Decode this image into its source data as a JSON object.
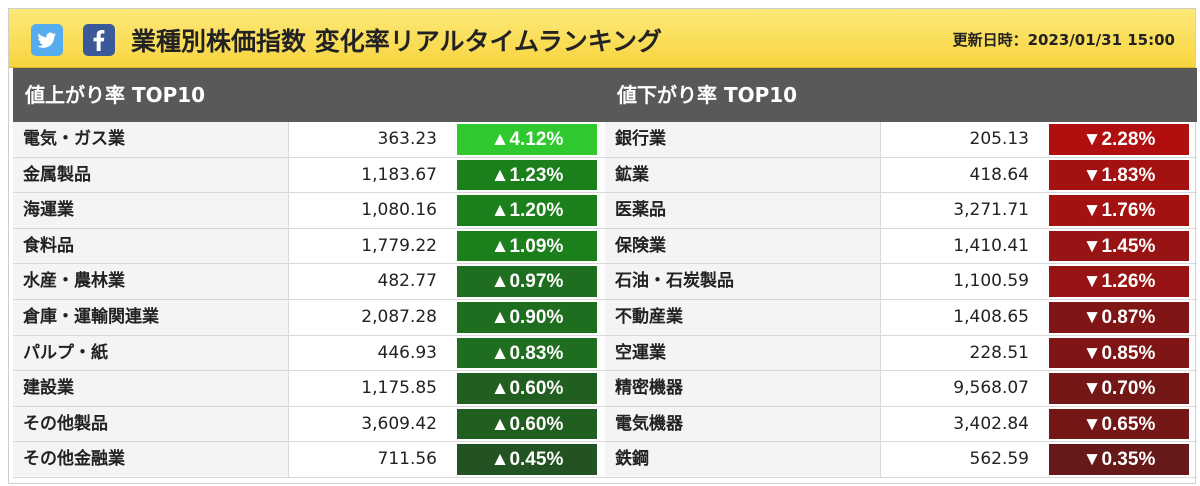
{
  "header": {
    "title": "業種別株価指数 変化率リアルタイムランキング",
    "updated": "更新日時：2023/01/31 15:00",
    "twitter_icon": "twitter-icon",
    "facebook_icon": "facebook-icon"
  },
  "top_gainers": {
    "title": "値上がり率 TOP10",
    "rows": [
      {
        "name": "電気・ガス業",
        "price": "363.23",
        "change": "▲4.12%",
        "color": "#2fc92f"
      },
      {
        "name": "金属製品",
        "price": "1,183.67",
        "change": "▲1.23%",
        "color": "#1b7f1b"
      },
      {
        "name": "海運業",
        "price": "1,080.16",
        "change": "▲1.20%",
        "color": "#1b7f1b"
      },
      {
        "name": "食料品",
        "price": "1,779.22",
        "change": "▲1.09%",
        "color": "#1b7f1b"
      },
      {
        "name": "水産・農林業",
        "price": "482.77",
        "change": "▲0.97%",
        "color": "#1f6e1f"
      },
      {
        "name": "倉庫・運輸関連業",
        "price": "2,087.28",
        "change": "▲0.90%",
        "color": "#1f6e1f"
      },
      {
        "name": "パルプ・紙",
        "price": "446.93",
        "change": "▲0.83%",
        "color": "#1f6e1f"
      },
      {
        "name": "建設業",
        "price": "1,175.85",
        "change": "▲0.60%",
        "color": "#215f21"
      },
      {
        "name": "その他製品",
        "price": "3,609.42",
        "change": "▲0.60%",
        "color": "#215f21"
      },
      {
        "name": "その他金融業",
        "price": "711.56",
        "change": "▲0.45%",
        "color": "#235323"
      }
    ]
  },
  "top_losers": {
    "title": "値下がり率 TOP10",
    "rows": [
      {
        "name": "銀行業",
        "price": "205.13",
        "change": "▼2.28%",
        "color": "#b10f0f"
      },
      {
        "name": "鉱業",
        "price": "418.64",
        "change": "▼1.83%",
        "color": "#a31111"
      },
      {
        "name": "医薬品",
        "price": "3,271.71",
        "change": "▼1.76%",
        "color": "#a31111"
      },
      {
        "name": "保険業",
        "price": "1,410.41",
        "change": "▼1.45%",
        "color": "#981313"
      },
      {
        "name": "石油・石炭製品",
        "price": "1,100.59",
        "change": "▼1.26%",
        "color": "#981313"
      },
      {
        "name": "不動産業",
        "price": "1,408.65",
        "change": "▼0.87%",
        "color": "#7f1515"
      },
      {
        "name": "空運業",
        "price": "228.51",
        "change": "▼0.85%",
        "color": "#7f1515"
      },
      {
        "name": "精密機器",
        "price": "9,568.07",
        "change": "▼0.70%",
        "color": "#741717"
      },
      {
        "name": "電気機器",
        "price": "3,402.84",
        "change": "▼0.65%",
        "color": "#741717"
      },
      {
        "name": "鉄鋼",
        "price": "562.59",
        "change": "▼0.35%",
        "color": "#671919"
      }
    ]
  }
}
